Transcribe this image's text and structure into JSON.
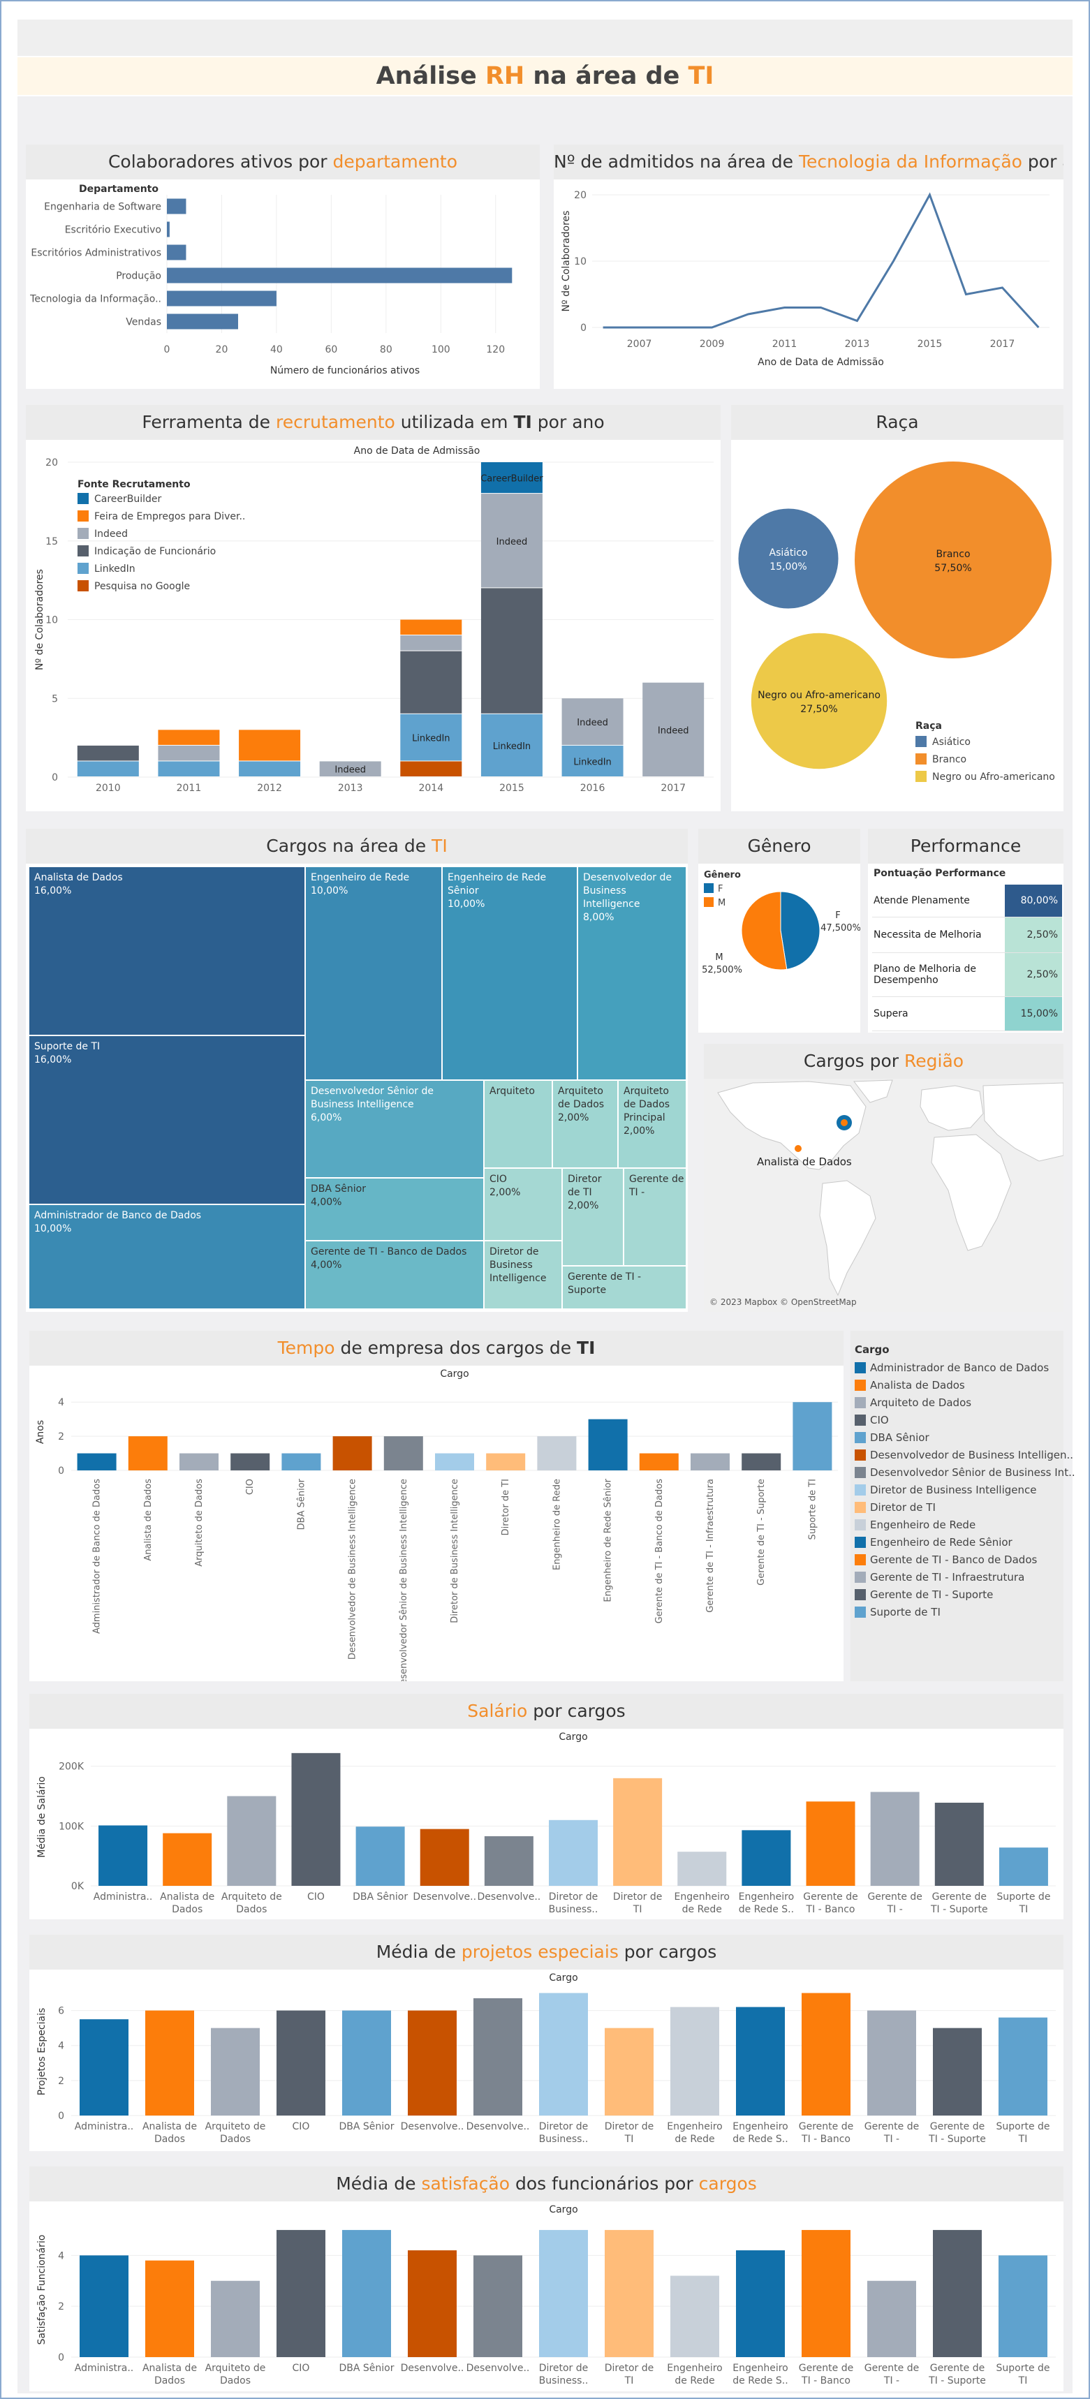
{
  "dashboard": {
    "title_a": "Análise ",
    "title_b": "RH",
    "title_c": " na área de ",
    "title_d": "TI"
  },
  "colors": {
    "blue": "#4e79a7",
    "orange": "#f28e2b",
    "gray": "#a0a9b6",
    "dark": "#555d6b",
    "tableau_blue": "#1170aa"
  },
  "panels": {
    "dept": {
      "t1": "Colaboradores ativos por ",
      "t2": "departamento"
    },
    "adm": {
      "t1": "Nº de admitidos na área de ",
      "t2": "Tecnologia da Informação",
      "t3": " por ano"
    },
    "rec": {
      "t1": "Ferramenta de ",
      "t2": "recrutamento",
      "t3": " utilizada em ",
      "t4": "TI",
      "t5": " por ano"
    },
    "raca": {
      "t1": "Raça"
    },
    "cargos": {
      "t1": "Cargos na área de ",
      "t2": "TI"
    },
    "genero": {
      "t1": "Gênero"
    },
    "perf": {
      "t1": "Performance"
    },
    "regiao": {
      "t1": "Cargos por ",
      "t2": "Região"
    },
    "tempo": {
      "t1": "Tempo",
      "t2": " de empresa dos cargos de ",
      "t3": "TI"
    },
    "salario": {
      "t1": "Salário",
      "t2": " por cargos"
    },
    "projetos": {
      "t1": "Média de ",
      "t2": "projetos especiais",
      "t3": " por cargos"
    },
    "satisf": {
      "t1": "Média de ",
      "t2": "satisfação",
      "t3": " dos funcionários por ",
      "t4": "cargos"
    }
  },
  "map": {
    "label": "Analista de Dados",
    "credit": "© 2023 Mapbox © OpenStreetMap"
  },
  "perf_table": {
    "header": "Pontuação Performance",
    "rows": [
      {
        "label": "Atende Plenamente",
        "value": "80,00%",
        "color": "#2e5a8c",
        "text": "#fff"
      },
      {
        "label": "Necessita de Melhoria",
        "value": "2,50%",
        "color": "#b9e3d6",
        "text": "#333"
      },
      {
        "label": "Plano de Melhoria de Desempenho",
        "value": "2,50%",
        "color": "#b9e3d6",
        "text": "#333"
      },
      {
        "label": "Supera",
        "value": "15,00%",
        "color": "#8fd3cf",
        "text": "#333"
      }
    ]
  },
  "cargo_legend": {
    "title": "Cargo",
    "items": [
      {
        "name": "Administrador de Banco de Dados",
        "color": "#1170aa"
      },
      {
        "name": "Analista de Dados",
        "color": "#fc7d0b"
      },
      {
        "name": "Arquiteto de Dados",
        "color": "#a3acb9"
      },
      {
        "name": "CIO",
        "color": "#57606c"
      },
      {
        "name": "DBA Sênior",
        "color": "#5fa2ce"
      },
      {
        "name": "Desenvolvedor de Business Intelligen..",
        "color": "#c85200"
      },
      {
        "name": "Desenvolvedor Sênior de Business Int..",
        "color": "#7b848f"
      },
      {
        "name": "Diretor de Business Intelligence",
        "color": "#a3cce9"
      },
      {
        "name": "Diretor de TI",
        "color": "#ffbc79"
      },
      {
        "name": "Engenheiro de Rede",
        "color": "#c8d0d9"
      },
      {
        "name": "Engenheiro de Rede Sênior",
        "color": "#1170aa"
      },
      {
        "name": "Gerente de TI - Banco de Dados",
        "color": "#fc7d0b"
      },
      {
        "name": "Gerente de TI - Infraestrutura",
        "color": "#a3acb9"
      },
      {
        "name": "Gerente de TI - Suporte",
        "color": "#57606c"
      },
      {
        "name": "Suporte de TI",
        "color": "#5fa2ce"
      }
    ]
  },
  "chart_data": [
    {
      "id": "dept",
      "type": "bar",
      "orientation": "horizontal",
      "title": "Colaboradores ativos por departamento",
      "header": "Departamento",
      "categories": [
        "Engenharia de Software",
        "Escritório Executivo",
        "Escritórios Administrativos",
        "Produção",
        "Tecnologia da Informação..",
        "Vendas"
      ],
      "values": [
        7,
        1,
        7,
        126,
        40,
        26
      ],
      "xlabel": "Número de funcionários ativos",
      "xlim": [
        0,
        130
      ],
      "ticks": [
        0,
        20,
        40,
        60,
        80,
        100,
        120
      ]
    },
    {
      "id": "adm",
      "type": "line",
      "title": "Nº de admitidos na área de Tecnologia da Informação por ano",
      "x": [
        2006,
        2007,
        2008,
        2009,
        2010,
        2011,
        2012,
        2013,
        2014,
        2015,
        2016,
        2017,
        2018
      ],
      "values": [
        0,
        0,
        0,
        0,
        2,
        3,
        3,
        1,
        10,
        20,
        5,
        6,
        0
      ],
      "xlabel": "Ano de Data de Admissão",
      "ylabel": "Nº de Colaboradores",
      "ylim": [
        0,
        20
      ],
      "yticks": [
        0,
        10,
        20
      ],
      "xticks": [
        2007,
        2009,
        2011,
        2013,
        2015,
        2017
      ]
    },
    {
      "id": "rec",
      "type": "bar",
      "stacked": true,
      "title": "Ferramenta de recrutamento utilizada em TI por ano",
      "top_label": "Ano de Data de Admissão",
      "legend_title": "Fonte Recrutamento",
      "categories": [
        "2010",
        "2011",
        "2012",
        "2013",
        "2014",
        "2015",
        "2016",
        "2017"
      ],
      "series": [
        {
          "name": "Pesquisa no Google",
          "color": "#c85200",
          "values": [
            0,
            0,
            0,
            0,
            1,
            0,
            0,
            0
          ]
        },
        {
          "name": "LinkedIn",
          "color": "#5fa2ce",
          "values": [
            1,
            1,
            1,
            0,
            3,
            4,
            2,
            0
          ]
        },
        {
          "name": "Indicação de Funcionário",
          "color": "#57606c",
          "values": [
            1,
            0,
            0,
            0,
            4,
            8,
            0,
            0
          ]
        },
        {
          "name": "Indeed",
          "color": "#a3acb9",
          "values": [
            0,
            1,
            0,
            1,
            1,
            6,
            3,
            6
          ]
        },
        {
          "name": "Feira de Empregos para Diver..",
          "color": "#fc7d0b",
          "values": [
            0,
            1,
            2,
            0,
            1,
            0,
            0,
            0
          ]
        },
        {
          "name": "CareerBuilder",
          "color": "#1170aa",
          "values": [
            0,
            0,
            0,
            0,
            0,
            2,
            0,
            0
          ]
        }
      ],
      "segment_labels": [
        {
          "category": "2013",
          "series": "Indeed",
          "text": "Indeed"
        },
        {
          "category": "2014",
          "series": "LinkedIn",
          "text": "LinkedIn"
        },
        {
          "category": "2015",
          "series": "LinkedIn",
          "text": "LinkedIn"
        },
        {
          "category": "2015",
          "series": "Indeed",
          "text": "Indeed"
        },
        {
          "category": "2015",
          "series": "CareerBuilder",
          "text": "CareerBuilder"
        },
        {
          "category": "2016",
          "series": "LinkedIn",
          "text": "LinkedIn"
        },
        {
          "category": "2016",
          "series": "Indeed",
          "text": "Indeed"
        },
        {
          "category": "2017",
          "series": "Indeed",
          "text": "Indeed"
        }
      ],
      "ylabel": "Nº de Colaboradores",
      "ylim": [
        0,
        20
      ],
      "yticks": [
        0,
        5,
        10,
        15,
        20
      ]
    },
    {
      "id": "raca",
      "type": "bubble",
      "title": "Raça",
      "legend_title": "Raça",
      "items": [
        {
          "name": "Asiático",
          "pct": "15,00%",
          "value": 15,
          "color": "#4e79a7"
        },
        {
          "name": "Branco",
          "pct": "57,50%",
          "value": 57.5,
          "color": "#f28e2b"
        },
        {
          "name": "Negro ou Afro-americano",
          "pct": "27,50%",
          "value": 27.5,
          "color": "#edc948"
        }
      ]
    },
    {
      "id": "cargos",
      "type": "treemap",
      "title": "Cargos na área de TI",
      "items": [
        {
          "name": "Analista de Dados",
          "pct": "16,00%"
        },
        {
          "name": "Suporte de TI",
          "pct": "16,00%"
        },
        {
          "name": "Administrador de Banco de Dados",
          "pct": "10,00%"
        },
        {
          "name": "Engenheiro de Rede",
          "pct": "10,00%"
        },
        {
          "name": "Engenheiro de Rede Sênior",
          "pct": "10,00%"
        },
        {
          "name": "Desenvolvedor de Business Intelligence",
          "pct": "8,00%"
        },
        {
          "name": "Desenvolvedor Sênior de Business Intelligence",
          "pct": "6,00%"
        },
        {
          "name": "DBA Sênior",
          "pct": "4,00%"
        },
        {
          "name": "Gerente de TI - Banco de Dados",
          "pct": "4,00%"
        },
        {
          "name": "Arquiteto",
          "pct": ""
        },
        {
          "name": "Arquiteto de Dados",
          "pct": "2,00%"
        },
        {
          "name": "Arquiteto de Dados Principal",
          "pct": "2,00%"
        },
        {
          "name": "CIO",
          "pct": "2,00%"
        },
        {
          "name": "Diretor de TI",
          "pct": "2,00%"
        },
        {
          "name": "Gerente de TI -",
          "pct": ""
        },
        {
          "name": "Diretor de Business Intelligence",
          "pct": ""
        },
        {
          "name": "Gerente de TI - Suporte",
          "pct": ""
        }
      ]
    },
    {
      "id": "genero",
      "type": "pie",
      "title": "Gênero",
      "legend_title": "Gênero",
      "items": [
        {
          "name": "F",
          "pct": "47,500%",
          "value": 47.5,
          "color": "#1170aa"
        },
        {
          "name": "M",
          "pct": "52,500%",
          "value": 52.5,
          "color": "#fc7d0b"
        }
      ]
    },
    {
      "id": "tempo",
      "type": "bar",
      "title": "Tempo de empresa dos cargos de TI",
      "top_label": "Cargo",
      "ylabel": "Anos",
      "ylim": [
        0,
        4.5
      ],
      "yticks": [
        0,
        2,
        4
      ],
      "categories": [
        "Administrador de Banco de Dados",
        "Analista de Dados",
        "Arquiteto de Dados",
        "CIO",
        "DBA Sênior",
        "Desenvolvedor de Business Intelligence",
        "Desenvolvedor Sênior de Business Intelligence",
        "Diretor de Business Intelligence",
        "Diretor de TI",
        "Engenheiro de Rede",
        "Engenheiro de Rede Sênior",
        "Gerente de TI - Banco de Dados",
        "Gerente de TI - Infraestrutura",
        "Gerente de TI - Suporte",
        "Suporte de TI"
      ],
      "values": [
        1,
        2,
        1,
        1,
        1,
        2,
        2,
        1,
        1,
        2,
        3,
        1,
        1,
        1,
        4
      ]
    },
    {
      "id": "salario",
      "type": "bar",
      "title": "Salário por cargos",
      "top_label": "Cargo",
      "ylabel": "Média de Salário",
      "ylim": [
        0,
        230000
      ],
      "yticks": [
        0,
        100000,
        200000
      ],
      "ytick_labels": [
        "0K",
        "100K",
        "200K"
      ],
      "categories": [
        "Administra..",
        "Analista de Dados",
        "Arquiteto de Dados",
        "CIO",
        "DBA Sênior",
        "Desenvolve..",
        "Desenvolve..",
        "Diretor de Business..",
        "Diretor de TI",
        "Engenheiro de Rede",
        "Engenheiro de Rede S..",
        "Gerente de TI - Banco d..",
        "Gerente de TI - Infraest..",
        "Gerente de TI - Suporte",
        "Suporte de TI"
      ],
      "values": [
        101000,
        88000,
        150000,
        222000,
        99000,
        95000,
        83000,
        110000,
        180000,
        57000,
        93000,
        141000,
        157000,
        139000,
        64000
      ]
    },
    {
      "id": "projetos",
      "type": "bar",
      "title": "Média de projetos especiais por cargos",
      "top_label": "Cargo",
      "ylabel": "Projetos Especiais",
      "ylim": [
        0,
        7.3
      ],
      "yticks": [
        0,
        2,
        4,
        6
      ],
      "categories": [
        "Administra..",
        "Analista de Dados",
        "Arquiteto de Dados",
        "CIO",
        "DBA Sênior",
        "Desenvolve..",
        "Desenvolve..",
        "Diretor de Business..",
        "Diretor de TI",
        "Engenheiro de Rede",
        "Engenheiro de Rede S..",
        "Gerente de TI - Banco d..",
        "Gerente de TI - Infraest..",
        "Gerente de TI - Suporte",
        "Suporte de TI"
      ],
      "values": [
        5.5,
        6,
        5,
        6,
        6,
        6,
        6.7,
        7,
        5,
        6.2,
        6.2,
        7,
        6,
        5,
        5.6
      ]
    },
    {
      "id": "satisf",
      "type": "bar",
      "title": "Média de satisfação dos funcionários por cargos",
      "top_label": "Cargo",
      "ylabel": "Satisfação Funcionário",
      "ylim": [
        0,
        5.3
      ],
      "yticks": [
        0,
        2,
        4
      ],
      "categories": [
        "Administra..",
        "Analista de Dados",
        "Arquiteto de Dados",
        "CIO",
        "DBA Sênior",
        "Desenvolve..",
        "Desenvolve..",
        "Diretor de Business..",
        "Diretor de TI",
        "Engenheiro de Rede",
        "Engenheiro de Rede S..",
        "Gerente de TI - Banco d..",
        "Gerente de TI - Infraest..",
        "Gerente de TI - Suporte",
        "Suporte de TI"
      ],
      "values": [
        4,
        3.8,
        3,
        5,
        5,
        4.2,
        4,
        5,
        5,
        3.2,
        4.2,
        5,
        3,
        5,
        4
      ]
    }
  ]
}
